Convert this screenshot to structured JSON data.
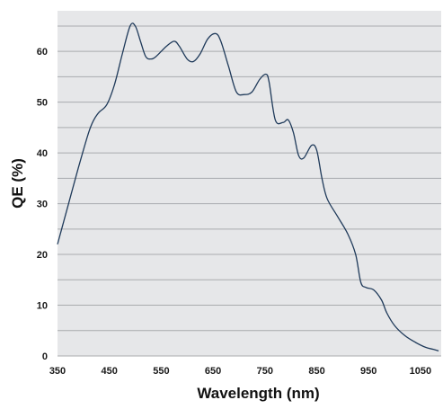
{
  "chart_data": {
    "type": "line",
    "title": "",
    "xlabel": "Wavelength (nm)",
    "ylabel": "QE (%)",
    "xlim": [
      350,
      1090
    ],
    "ylim": [
      0,
      68
    ],
    "x_ticks": [
      350,
      450,
      550,
      650,
      750,
      850,
      950,
      1050
    ],
    "y_ticks": [
      0,
      10,
      20,
      30,
      40,
      50,
      60
    ],
    "grid": "horizontal",
    "legend": "none",
    "colors": {
      "line": "#1f3a5a",
      "plot_background": "#e6e7e9",
      "grid": "#a9abae"
    },
    "series": [
      {
        "x": [
          350,
          370,
          390,
          410,
          420,
          430,
          445,
          460,
          475,
          490,
          500,
          510,
          520,
          530,
          540,
          560,
          575,
          585,
          600,
          612,
          625,
          640,
          655,
          665,
          680,
          695,
          710,
          725,
          740,
          752,
          758,
          770,
          785,
          795,
          805,
          815,
          825,
          840,
          850,
          860,
          870,
          890,
          910,
          925,
          935,
          945,
          960,
          975,
          985,
          1000,
          1020,
          1040,
          1060,
          1075,
          1085
        ],
        "y": [
          22,
          29.5,
          37,
          44,
          46.5,
          48,
          49.5,
          53.5,
          59.5,
          65,
          65,
          62,
          59,
          58.5,
          59,
          61,
          62,
          61,
          58.5,
          58,
          59.5,
          62.5,
          63.5,
          62,
          57,
          52,
          51.5,
          52,
          54.5,
          55.5,
          54,
          46.5,
          46,
          46.5,
          44,
          39.5,
          39,
          41.5,
          40.5,
          35,
          31,
          27.5,
          24,
          20,
          14.5,
          13.5,
          13,
          11,
          8.5,
          6,
          4,
          2.7,
          1.7,
          1.3,
          1
        ]
      }
    ]
  }
}
